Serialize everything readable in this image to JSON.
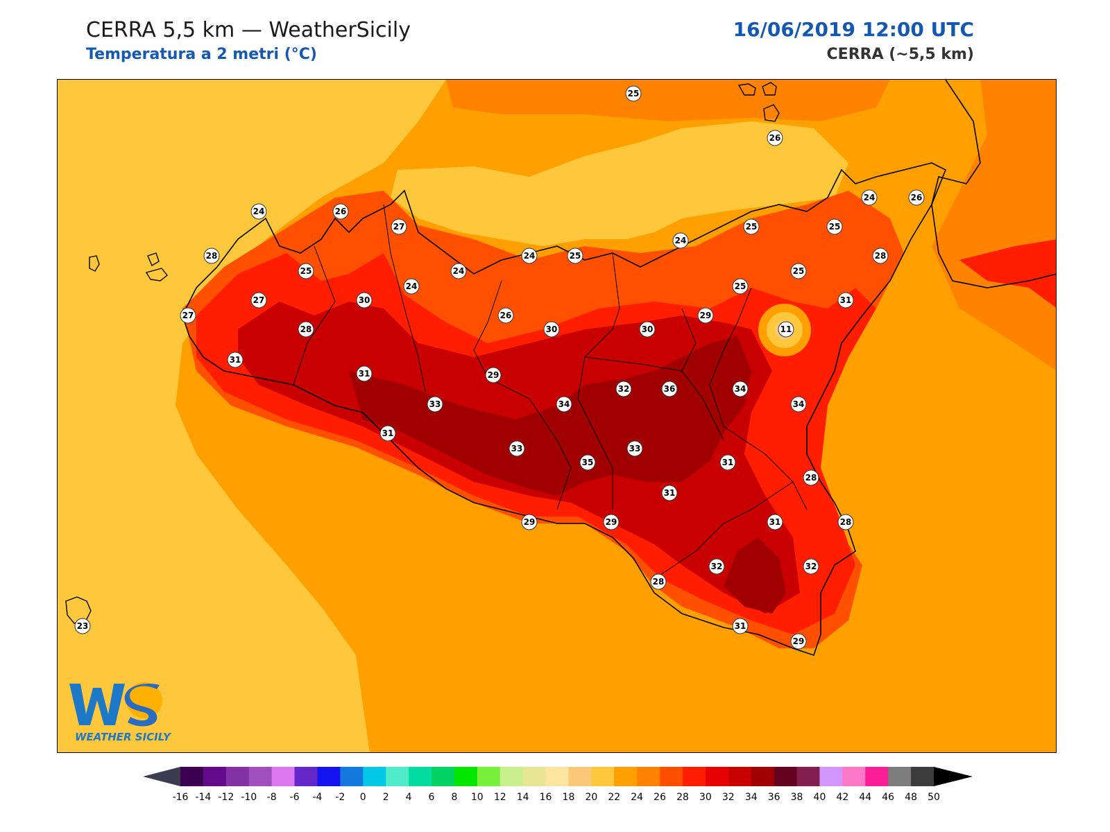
{
  "header": {
    "title": "CERRA 5,5 km — WeatherSicily",
    "subtitle": "Temperatura a 2 metri (°C)",
    "datetime": "16/06/2019 12:00 UTC",
    "model": "CERRA (~5,5 km)"
  },
  "map": {
    "variable": "2m temperature",
    "unit": "°C",
    "station_values": [
      25,
      26,
      24,
      26,
      27,
      28,
      25,
      27,
      30,
      24,
      24,
      24,
      25,
      24,
      25,
      25,
      24,
      26,
      28,
      25,
      25,
      31,
      27,
      28,
      26,
      30,
      30,
      29,
      11,
      31,
      31,
      29,
      32,
      36,
      34,
      34,
      33,
      34,
      31,
      33,
      35,
      33,
      31,
      31,
      28,
      31,
      28,
      29,
      29,
      32,
      32,
      28,
      31,
      29,
      23
    ]
  },
  "colorbar": {
    "ticks": [
      "-16",
      "-14",
      "-12",
      "-10",
      "-8",
      "-6",
      "-4",
      "-2",
      "0",
      "2",
      "4",
      "6",
      "8",
      "10",
      "12",
      "14",
      "16",
      "18",
      "20",
      "22",
      "24",
      "26",
      "28",
      "30",
      "32",
      "34",
      "36",
      "38",
      "40",
      "42",
      "44",
      "46",
      "48",
      "50"
    ],
    "colors": [
      "#3c0050",
      "#640a8c",
      "#8232a5",
      "#a050be",
      "#dc78f0",
      "#6428c8",
      "#1414f0",
      "#1478dc",
      "#00c8e6",
      "#50ebc8",
      "#00dca0",
      "#00d264",
      "#00e600",
      "#78f03c",
      "#c8f08c",
      "#e6e696",
      "#ffe6a0",
      "#fac878",
      "#ffc83c",
      "#ffa000",
      "#ff8200",
      "#ff5000",
      "#ff1e00",
      "#e60000",
      "#c80000",
      "#a00000",
      "#640020",
      "#821e50",
      "#d296ff",
      "#ff78c8",
      "#ff1e96",
      "#7d7d7d",
      "#3c3c3c"
    ],
    "under_color": "#3c3c50",
    "over_color": "#000000"
  },
  "logo": {
    "letters": "WS",
    "wordmark": "WEATHER SICILY"
  }
}
